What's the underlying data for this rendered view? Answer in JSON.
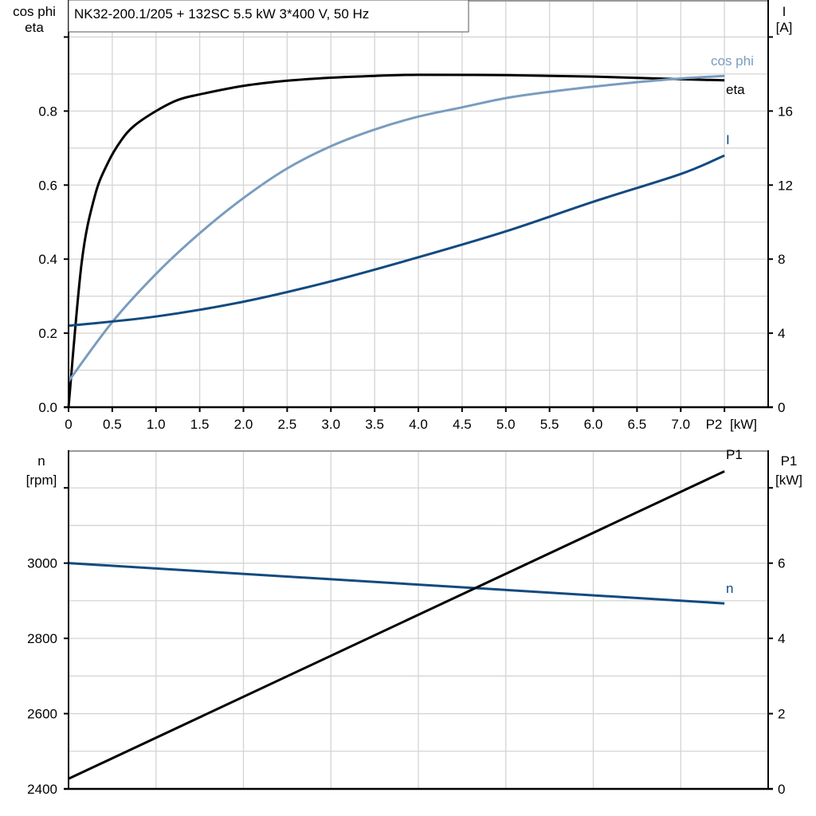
{
  "title": "NK32-200.1/205 + 132SC   5.5 kW   3*400 V, 50 Hz",
  "colors": {
    "eta": "#000000",
    "cos_phi": "#7a9cbf",
    "I": "#124a80",
    "n": "#124a80",
    "P1": "#000000",
    "grid": "#d4d4d4"
  },
  "chart_data": [
    {
      "type": "line",
      "xlabel": [
        "P2",
        "[kW]"
      ],
      "xlim": [
        0,
        8
      ],
      "xticks": [
        0,
        0.5,
        1.0,
        1.5,
        2.0,
        2.5,
        3.0,
        3.5,
        4.0,
        4.5,
        5.0,
        5.5,
        6.0,
        6.5,
        7.0
      ],
      "xtick_labels": [
        "0",
        "0.5",
        "1.0",
        "1.5",
        "2.0",
        "2.5",
        "3.0",
        "3.5",
        "4.0",
        "4.5",
        "5.0",
        "5.5",
        "6.0",
        "6.5",
        "7.0"
      ],
      "ylabel_left": [
        "cos phi",
        "eta"
      ],
      "ylim_left": [
        0,
        1.1
      ],
      "yticks_left": [
        "0.0",
        "0.2",
        "0.4",
        "0.6",
        "0.8"
      ],
      "ylabel_right": [
        "I",
        "[A]"
      ],
      "ylim_right": [
        0,
        22
      ],
      "yticks_right": [
        "0",
        "4",
        "8",
        "12",
        "16"
      ],
      "grid": true,
      "series": [
        {
          "name": "eta",
          "axis": "left",
          "x": [
            0,
            0.15,
            0.3,
            0.45,
            0.6,
            0.75,
            1.0,
            1.25,
            1.5,
            2.0,
            2.5,
            3.0,
            3.5,
            4.0,
            5.0,
            6.0,
            7.0,
            7.5
          ],
          "y": [
            0,
            0.39,
            0.57,
            0.66,
            0.72,
            0.76,
            0.8,
            0.83,
            0.845,
            0.868,
            0.882,
            0.89,
            0.895,
            0.898,
            0.897,
            0.893,
            0.886,
            0.883
          ]
        },
        {
          "name": "cos phi",
          "axis": "left",
          "x": [
            0,
            0.5,
            1.0,
            1.5,
            2.0,
            2.5,
            3.0,
            3.5,
            4.0,
            4.5,
            5.0,
            5.5,
            6.0,
            6.5,
            7.0,
            7.5
          ],
          "y": [
            0.07,
            0.23,
            0.36,
            0.47,
            0.565,
            0.645,
            0.705,
            0.75,
            0.785,
            0.81,
            0.835,
            0.852,
            0.866,
            0.878,
            0.888,
            0.895
          ]
        },
        {
          "name": "I",
          "axis": "right",
          "x": [
            0,
            1,
            2,
            3,
            4,
            5,
            6,
            7,
            7.5
          ],
          "y": [
            4.4,
            4.9,
            5.7,
            6.8,
            8.1,
            9.5,
            11.1,
            12.6,
            13.6
          ]
        }
      ]
    },
    {
      "type": "line",
      "xlim": [
        0,
        8
      ],
      "ylabel_left": [
        "n",
        "[rpm]"
      ],
      "ylim_left": [
        2400,
        3300
      ],
      "yticks_left": [
        "2400",
        "2600",
        "2800",
        "3000"
      ],
      "ylabel_right": [
        "P1",
        "[kW]"
      ],
      "ylim_right": [
        0,
        9
      ],
      "yticks_right": [
        "0",
        "2",
        "4",
        "6"
      ],
      "grid": true,
      "series": [
        {
          "name": "n",
          "axis": "left",
          "x": [
            0,
            7.5
          ],
          "y": [
            3000,
            2893
          ]
        },
        {
          "name": "P1",
          "axis": "right",
          "x": [
            0,
            7.5
          ],
          "y": [
            0.27,
            8.44
          ]
        }
      ]
    }
  ]
}
